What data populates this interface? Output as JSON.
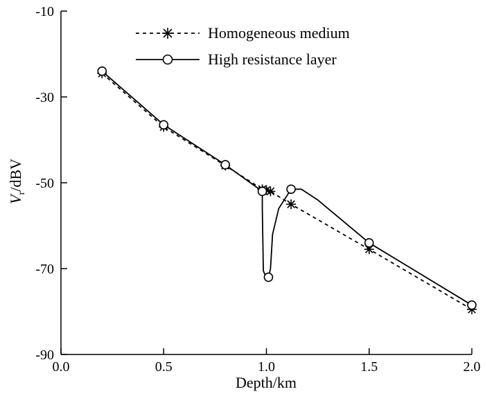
{
  "chart_data": {
    "type": "line",
    "xlabel": "Depth/km",
    "ylabel_main": "V",
    "ylabel_sub": "r",
    "ylabel_rest": "/dBV",
    "xlim": [
      0.0,
      2.0
    ],
    "ylim": [
      -90,
      -10
    ],
    "xticks": [
      0.0,
      0.5,
      1.0,
      1.5,
      2.0
    ],
    "xtick_labels": [
      "0.0",
      "0.5",
      "1.0",
      "1.5",
      "2.0"
    ],
    "yticks": [
      -10,
      -30,
      -50,
      -70,
      -90
    ],
    "ytick_labels": [
      "-10",
      "-30",
      "-50",
      "-70",
      "-90"
    ],
    "legend_position": "top-center",
    "series": [
      {
        "name": "Homogeneous medium",
        "line_style": "dashed",
        "marker": "asterisk",
        "color": "#000000",
        "x": [
          0.2,
          0.5,
          0.8,
          0.98,
          1.0,
          1.02,
          1.12,
          1.5,
          2.0
        ],
        "y": [
          -24.5,
          -37.0,
          -46.0,
          -51.5,
          -51.7,
          -52.0,
          -55.0,
          -65.5,
          -79.5
        ]
      },
      {
        "name": "High resistance layer",
        "line_style": "solid",
        "marker": "circle",
        "color": "#000000",
        "x": [
          0.2,
          0.5,
          0.8,
          0.98,
          0.98,
          0.985,
          1.0,
          1.01,
          1.02,
          1.03,
          1.06,
          1.12,
          1.17,
          1.25,
          1.5,
          2.0
        ],
        "y": [
          -24.0,
          -36.5,
          -45.8,
          -52.0,
          -56.0,
          -70.5,
          -72.3,
          -72.0,
          -70.0,
          -62.0,
          -56.0,
          -51.5,
          -51.5,
          -54.0,
          -64.0,
          -78.5
        ],
        "marker_x": [
          0.2,
          0.5,
          0.8,
          0.98,
          1.01,
          1.12,
          1.5,
          2.0
        ],
        "marker_y": [
          -24.0,
          -36.5,
          -45.8,
          -52.0,
          -72.0,
          -51.5,
          -64.0,
          -78.5
        ]
      }
    ]
  }
}
